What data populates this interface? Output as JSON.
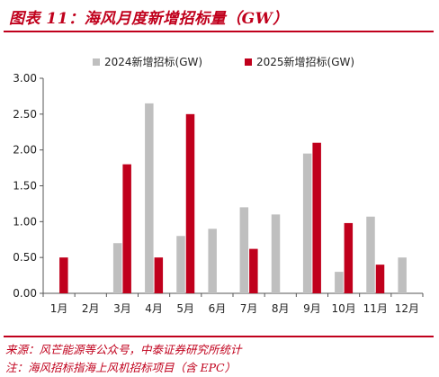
{
  "title": "图表 11：海风月度新增招标量（GW）",
  "source": "来源：风芒能源等公众号，中泰证券研究所统计",
  "note": "注：海风招标指海上风机招标项目（含 EPC）",
  "chart_data": {
    "type": "bar",
    "categories": [
      "1月",
      "2月",
      "3月",
      "4月",
      "5月",
      "6月",
      "7月",
      "8月",
      "9月",
      "10月",
      "11月",
      "12月"
    ],
    "series": [
      {
        "name": "2024新增招标(GW)",
        "color": "#bfbfbf",
        "values": [
          0,
          0,
          0.7,
          2.65,
          0.8,
          0.9,
          1.2,
          1.1,
          1.95,
          0.3,
          1.07,
          0.5
        ]
      },
      {
        "name": "2025新增招标(GW)",
        "color": "#c0001c",
        "values": [
          0.5,
          0,
          1.8,
          0.5,
          2.5,
          0,
          0.62,
          0,
          2.1,
          0.98,
          0.4,
          0
        ]
      }
    ],
    "ylim": [
      0,
      3.0
    ],
    "yticks": [
      "0.00",
      "0.50",
      "1.00",
      "1.50",
      "2.00",
      "2.50",
      "3.00"
    ],
    "grid": false,
    "legend": "top"
  }
}
